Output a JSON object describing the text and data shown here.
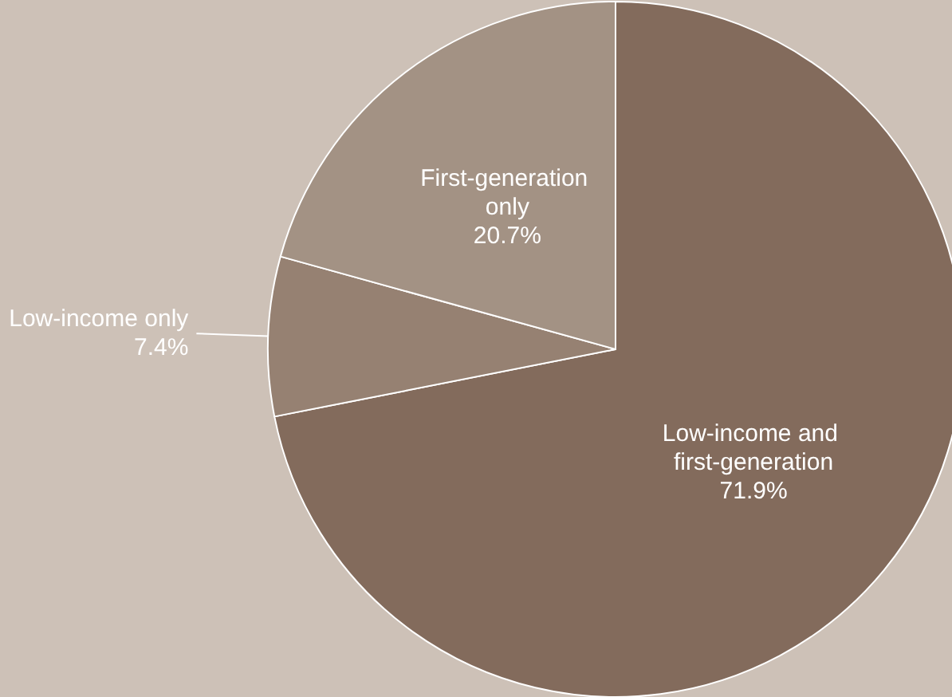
{
  "chart_data": {
    "type": "pie",
    "categories": [
      "Low-income and first-generation",
      "Low-income only",
      "First-generation only"
    ],
    "values": [
      71.9,
      7.4,
      20.7
    ],
    "value_labels": [
      "71.9%",
      "7.4%",
      "20.7%"
    ],
    "colors": [
      "#836b5c",
      "#968172",
      "#a39284"
    ],
    "legend": false
  }
}
